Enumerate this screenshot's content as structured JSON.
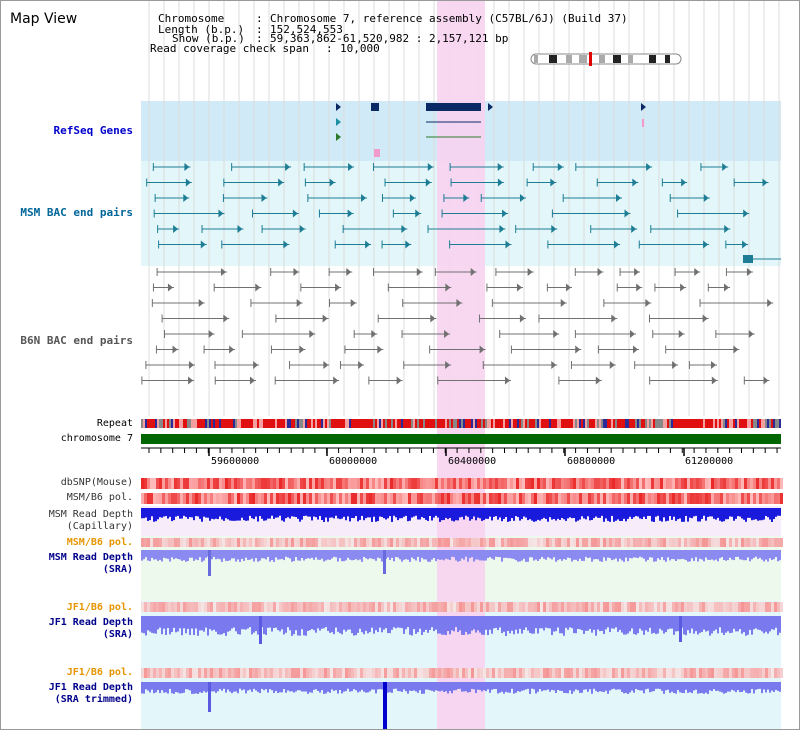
{
  "title": "Map View",
  "info": {
    "chromosome_key": "Chromosome",
    "chromosome_val": "Chromosome 7, reference assembly (C57BL/6J) (Build 37)",
    "length_key": "Length (b.p.)",
    "length_val": "152,524,553",
    "show_key": "Show (b.p.)",
    "show_val": "59,363,862-61,520,982 : 2,157,121 bp",
    "coverage_key": "Read coverage check span",
    "coverage_val": "10,000"
  },
  "sep": ":",
  "tracks": {
    "refseq": "RefSeq Genes",
    "msm_bac": "MSM BAC end pairs",
    "b6n_bac": "B6N BAC end pairs",
    "repeat": "Repeat",
    "chrom": "chromosome 7",
    "dbsnp": "dbSNP(Mouse)",
    "msm_pol": "MSM/B6 pol.",
    "msm_depth_cap_1": "MSM Read Depth",
    "msm_depth_cap_2": "(Capillary)",
    "msm_pol_2": "MSM/B6 pol.",
    "msm_depth_sra_1": "MSM Read Depth",
    "msm_depth_sra_2": "(SRA)",
    "jf1_pol": "JF1/B6 pol.",
    "jf1_depth_sra_1": "JF1 Read Depth",
    "jf1_depth_sra_2": "(SRA)",
    "jf1_pol_2": "JF1/B6 pol.",
    "jf1_depth_trim_1": "JF1 Read Depth",
    "jf1_depth_trim_2": "(SRA trimmed)"
  },
  "ruler": {
    "ticks": [
      "59600000",
      "60000000",
      "60400000",
      "60800000",
      "61200000"
    ]
  },
  "colors": {
    "refseq_label": "#0000cc",
    "msm_label": "#006699",
    "b6n_label": "#555555",
    "msm_pol_label": "#e69500",
    "depth_label": "#00008b",
    "highlight": "#f7d3ef"
  }
}
